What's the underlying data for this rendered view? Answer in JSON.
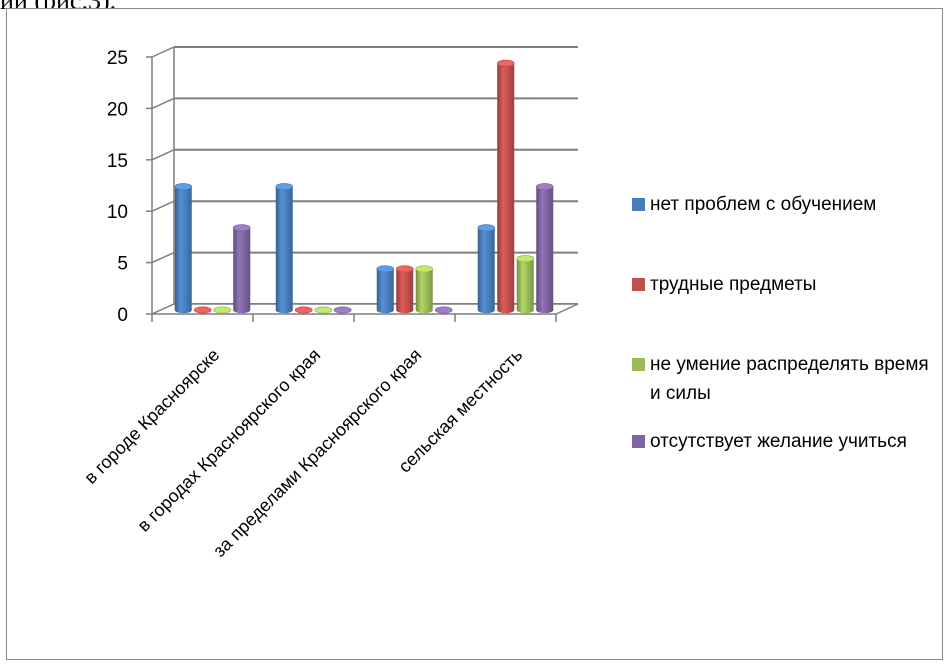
{
  "page_text_top": "ии (рис.3).",
  "colors": {
    "series": [
      "#4a7ebb",
      "#c0504d",
      "#9bbb59",
      "#8064a2"
    ],
    "grid": "#7f7f7f",
    "frame": "#8a8a8a"
  },
  "chart_data": {
    "type": "bar",
    "title": "",
    "xlabel": "",
    "ylabel": "",
    "ylim": [
      0,
      25
    ],
    "yticks": [
      0,
      5,
      10,
      15,
      20,
      25
    ],
    "grid": true,
    "legend_position": "right",
    "categories": [
      "в городе Красноярске",
      "в городах Красноярского края",
      "за пределами Красноярского края",
      "сельская местность"
    ],
    "series": [
      {
        "name": "нет проблем с обучением",
        "values": [
          12,
          12,
          4,
          8
        ]
      },
      {
        "name": "трудные предметы",
        "values": [
          0,
          0,
          4,
          24
        ]
      },
      {
        "name": "не умение распределять время и силы",
        "values": [
          0,
          0,
          4,
          5
        ]
      },
      {
        "name": "отсутствует желание учиться",
        "values": [
          8,
          0,
          0,
          12
        ]
      }
    ]
  }
}
